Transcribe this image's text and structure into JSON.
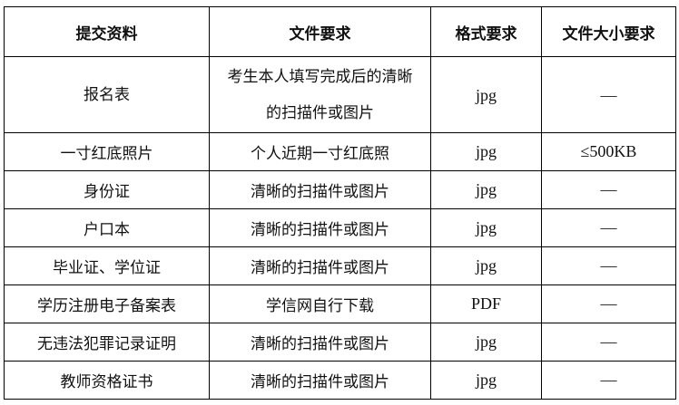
{
  "table": {
    "headers": [
      "提交资料",
      "文件要求",
      "格式要求",
      "文件大小要求"
    ],
    "rows": [
      [
        "报名表",
        "考生本人填写完成后的清晰的扫描件或图片",
        "jpg",
        "—"
      ],
      [
        "一寸红底照片",
        "个人近期一寸红底照",
        "jpg",
        "≤500KB"
      ],
      [
        "身份证",
        "清晰的扫描件或图片",
        "jpg",
        "—"
      ],
      [
        "户口本",
        "清晰的扫描件或图片",
        "jpg",
        "—"
      ],
      [
        "毕业证、学位证",
        "清晰的扫描件或图片",
        "jpg",
        "—"
      ],
      [
        "学历注册电子备案表",
        "学信网自行下载",
        "PDF",
        "—"
      ],
      [
        "无违法犯罪记录证明",
        "清晰的扫描件或图片",
        "jpg",
        "—"
      ],
      [
        "教师资格证书",
        "清晰的扫描件或图片",
        "jpg",
        "—"
      ]
    ]
  }
}
